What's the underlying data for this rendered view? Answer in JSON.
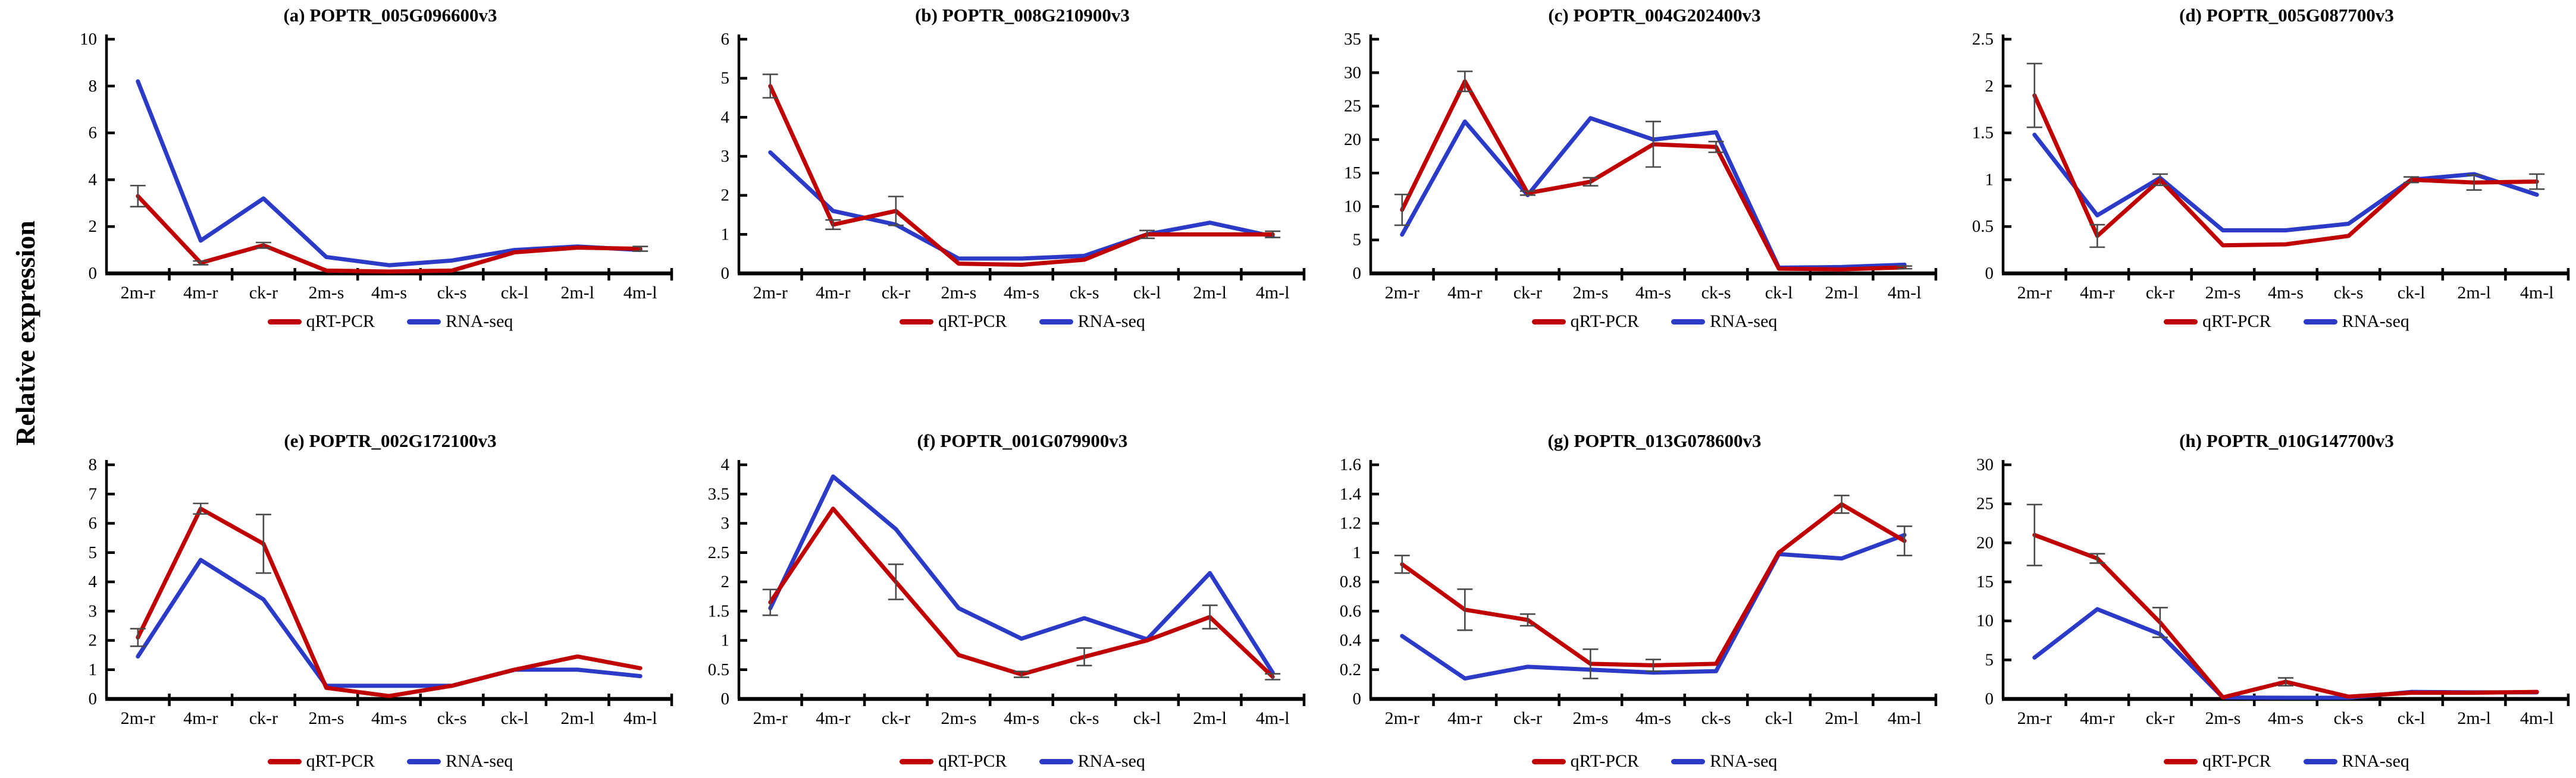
{
  "figure": {
    "y_axis_label": "Relative expression",
    "legend": {
      "qrt_pcr": "qRT-PCR",
      "rna_seq": "RNA-seq"
    },
    "colors": {
      "qrt_pcr": "#C00000",
      "rna_seq": "#2B3BC8",
      "error_bar": "#4A4A4A",
      "axis": "#000000"
    }
  },
  "chart_data": [
    {
      "type": "line",
      "title": "(a) POPTR_005G096600v3",
      "categories": [
        "2m-r",
        "4m-r",
        "ck-r",
        "2m-s",
        "4m-s",
        "ck-s",
        "ck-l",
        "2m-l",
        "4m-l"
      ],
      "ylim": [
        0,
        10
      ],
      "ytick_step": 2,
      "grid": false,
      "legend_position": "bottom",
      "series": [
        {
          "name": "qRT-PCR",
          "color_key": "qrt_pcr",
          "values": [
            3.3,
            0.45,
            1.2,
            0.12,
            0.08,
            0.12,
            0.9,
            1.1,
            1.05
          ],
          "errors": [
            0.45,
            0.08,
            0.12,
            0,
            0,
            0,
            0,
            0,
            0.1
          ]
        },
        {
          "name": "RNA-seq",
          "color_key": "rna_seq",
          "values": [
            8.2,
            1.4,
            3.2,
            0.7,
            0.35,
            0.55,
            1.0,
            1.15,
            1.0
          ]
        }
      ]
    },
    {
      "type": "line",
      "title": "(b) POPTR_008G210900v3",
      "categories": [
        "2m-r",
        "4m-r",
        "ck-r",
        "2m-s",
        "4m-s",
        "ck-s",
        "ck-l",
        "2m-l",
        "4m-l"
      ],
      "ylim": [
        0,
        6
      ],
      "ytick_step": 1,
      "grid": false,
      "legend_position": "bottom",
      "series": [
        {
          "name": "qRT-PCR",
          "color_key": "qrt_pcr",
          "values": [
            4.8,
            1.25,
            1.6,
            0.25,
            0.22,
            0.35,
            1.0,
            1.0,
            1.0
          ],
          "errors": [
            0.3,
            0.12,
            0.37,
            0,
            0,
            0,
            0.1,
            0,
            0.08
          ]
        },
        {
          "name": "RNA-seq",
          "color_key": "rna_seq",
          "values": [
            3.1,
            1.6,
            1.25,
            0.38,
            0.38,
            0.45,
            1.0,
            1.3,
            0.95
          ]
        }
      ]
    },
    {
      "type": "line",
      "title": "(c) POPTR_004G202400v3",
      "categories": [
        "2m-r",
        "4m-r",
        "ck-r",
        "2m-s",
        "4m-s",
        "ck-s",
        "ck-l",
        "2m-l",
        "4m-l"
      ],
      "ylim": [
        0,
        35
      ],
      "ytick_step": 5,
      "grid": false,
      "legend_position": "bottom",
      "series": [
        {
          "name": "qRT-PCR",
          "color_key": "qrt_pcr",
          "values": [
            9.5,
            28.7,
            12.0,
            13.7,
            19.3,
            18.9,
            0.7,
            0.6,
            0.9
          ],
          "errors": [
            2.3,
            1.5,
            0.3,
            0.6,
            3.4,
            0.8,
            0,
            0,
            0.2
          ]
        },
        {
          "name": "RNA-seq",
          "color_key": "rna_seq",
          "values": [
            5.8,
            22.7,
            11.7,
            23.2,
            20.0,
            21.1,
            0.85,
            0.95,
            1.3
          ]
        }
      ]
    },
    {
      "type": "line",
      "title": "(d) POPTR_005G087700v3",
      "categories": [
        "2m-r",
        "4m-r",
        "ck-r",
        "2m-s",
        "4m-s",
        "ck-s",
        "ck-l",
        "2m-l",
        "4m-l"
      ],
      "ylim": [
        0,
        2.5
      ],
      "ytick_step": 0.5,
      "grid": false,
      "legend_position": "bottom",
      "series": [
        {
          "name": "qRT-PCR",
          "color_key": "qrt_pcr",
          "values": [
            1.9,
            0.4,
            1.0,
            0.3,
            0.31,
            0.4,
            1.0,
            0.97,
            0.98
          ],
          "errors": [
            0.34,
            0.12,
            0.06,
            0,
            0,
            0,
            0.03,
            0.08,
            0.08
          ]
        },
        {
          "name": "RNA-seq",
          "color_key": "rna_seq",
          "values": [
            1.48,
            0.62,
            1.02,
            0.46,
            0.46,
            0.53,
            1.0,
            1.06,
            0.84
          ]
        }
      ]
    },
    {
      "type": "line",
      "title": "(e) POPTR_002G172100v3",
      "categories": [
        "2m-r",
        "4m-r",
        "ck-r",
        "2m-s",
        "4m-s",
        "ck-s",
        "ck-l",
        "2m-l",
        "4m-l"
      ],
      "ylim": [
        0,
        8
      ],
      "ytick_step": 1,
      "grid": false,
      "legend_position": "bottom",
      "series": [
        {
          "name": "qRT-PCR",
          "color_key": "qrt_pcr",
          "values": [
            2.1,
            6.5,
            5.3,
            0.38,
            0.1,
            0.45,
            1.0,
            1.45,
            1.05
          ],
          "errors": [
            0.3,
            0.18,
            1.0,
            0,
            0,
            0,
            0,
            0,
            0
          ]
        },
        {
          "name": "RNA-seq",
          "color_key": "rna_seq",
          "values": [
            1.45,
            4.75,
            3.4,
            0.45,
            0.45,
            0.45,
            1.0,
            1.0,
            0.78
          ]
        }
      ]
    },
    {
      "type": "line",
      "title": "(f) POPTR_001G079900v3",
      "categories": [
        "2m-r",
        "4m-r",
        "ck-r",
        "2m-s",
        "4m-s",
        "ck-s",
        "ck-l",
        "2m-l",
        "4m-l"
      ],
      "ylim": [
        0,
        4
      ],
      "ytick_step": 0.5,
      "grid": false,
      "legend_position": "bottom",
      "series": [
        {
          "name": "qRT-PCR",
          "color_key": "qrt_pcr",
          "values": [
            1.65,
            3.25,
            2.0,
            0.75,
            0.42,
            0.72,
            1.0,
            1.4,
            0.38
          ],
          "errors": [
            0.22,
            0,
            0.3,
            0,
            0.05,
            0.15,
            0,
            0.2,
            0.05
          ]
        },
        {
          "name": "RNA-seq",
          "color_key": "rna_seq",
          "values": [
            1.55,
            3.8,
            2.9,
            1.55,
            1.03,
            1.38,
            1.02,
            2.15,
            0.45
          ]
        }
      ]
    },
    {
      "type": "line",
      "title": "(g) POPTR_013G078600v3",
      "categories": [
        "2m-r",
        "4m-r",
        "ck-r",
        "2m-s",
        "4m-s",
        "ck-s",
        "ck-l",
        "2m-l",
        "4m-l"
      ],
      "ylim": [
        0,
        1.6
      ],
      "ytick_step": 0.2,
      "grid": false,
      "legend_position": "bottom",
      "series": [
        {
          "name": "qRT-PCR",
          "color_key": "qrt_pcr",
          "values": [
            0.92,
            0.61,
            0.54,
            0.24,
            0.23,
            0.24,
            1.0,
            1.33,
            1.08
          ],
          "errors": [
            0.06,
            0.14,
            0.04,
            0.1,
            0.04,
            0,
            0,
            0.06,
            0.1
          ]
        },
        {
          "name": "RNA-seq",
          "color_key": "rna_seq",
          "values": [
            0.43,
            0.14,
            0.22,
            0.2,
            0.18,
            0.19,
            0.99,
            0.96,
            1.12
          ]
        }
      ]
    },
    {
      "type": "line",
      "title": "(h) POPTR_010G147700v3",
      "categories": [
        "2m-r",
        "4m-r",
        "ck-r",
        "2m-s",
        "4m-s",
        "ck-s",
        "ck-l",
        "2m-l",
        "4m-l"
      ],
      "ylim": [
        0,
        30
      ],
      "ytick_step": 5,
      "grid": false,
      "legend_position": "bottom",
      "series": [
        {
          "name": "qRT-PCR",
          "color_key": "qrt_pcr",
          "values": [
            21.0,
            18.0,
            9.8,
            0.2,
            2.2,
            0.3,
            0.8,
            0.8,
            0.9
          ],
          "errors": [
            3.9,
            0.6,
            1.9,
            0,
            0.5,
            0,
            0,
            0,
            0
          ]
        },
        {
          "name": "RNA-seq",
          "color_key": "rna_seq",
          "values": [
            5.3,
            11.5,
            8.3,
            0.2,
            0.15,
            0.15,
            0.9,
            0.85,
            0.85
          ]
        }
      ]
    }
  ]
}
